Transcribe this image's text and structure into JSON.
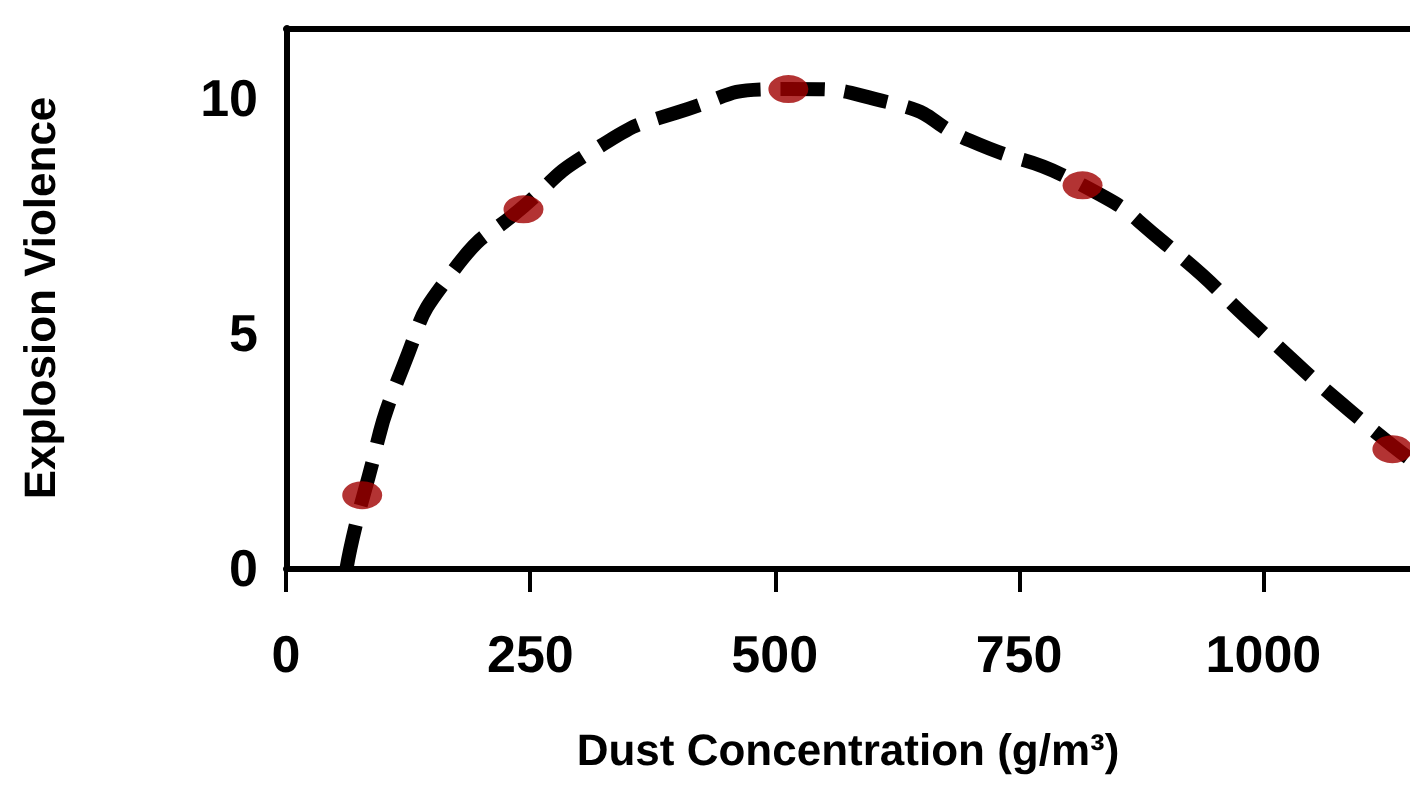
{
  "chart_data": {
    "type": "scatter",
    "xlabel": "Dust Concentration (g/m³)",
    "ylabel": "Explosion Violence",
    "xlim": [
      0,
      1150
    ],
    "xticks": [
      0,
      250,
      500,
      750,
      1000
    ],
    "ylim": [
      0,
      11.5
    ],
    "yticks": [
      0,
      5,
      10
    ],
    "grid": false,
    "series": [
      {
        "type": "line",
        "color": "#000000",
        "line_style": "dashed",
        "marker": "none",
        "x": [
          62,
          80,
          120,
          170,
          243,
          315,
          400,
          514,
          620,
          700,
          815,
          900,
          1000,
          1080,
          1148
        ],
        "values": [
          0,
          1.6,
          4.3,
          6.3,
          7.7,
          8.9,
          9.7,
          10.2,
          9.9,
          9.1,
          8.15,
          6.9,
          5.0,
          3.5,
          2.35
        ]
      },
      {
        "color": "#a00000",
        "marker": "circle",
        "x": [
          78,
          243,
          514,
          815,
          1132
        ],
        "values": [
          1.55,
          7.64,
          10.2,
          8.15,
          2.53
        ]
      }
    ]
  }
}
